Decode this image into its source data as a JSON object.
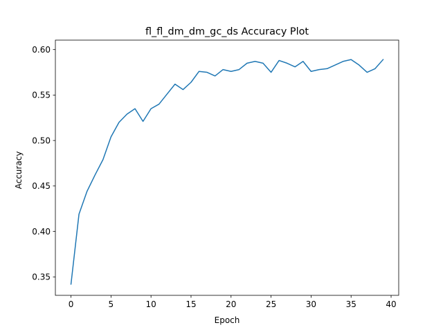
{
  "chart_data": {
    "type": "line",
    "title": "fl_fl_dm_dm_gc_ds Accuracy Plot",
    "xlabel": "Epoch",
    "ylabel": "Accuracy",
    "xlim": [
      -1.95,
      40.95
    ],
    "ylim": [
      0.3297,
      0.6104
    ],
    "xticks": [
      0,
      5,
      10,
      15,
      20,
      25,
      30,
      35,
      40
    ],
    "xtick_labels": [
      "0",
      "5",
      "10",
      "15",
      "20",
      "25",
      "30",
      "35",
      "40"
    ],
    "yticks": [
      0.35,
      0.4,
      0.45,
      0.5,
      0.55,
      0.6
    ],
    "ytick_labels": [
      "0.35",
      "0.40",
      "0.45",
      "0.50",
      "0.55",
      "0.60"
    ],
    "grid": false,
    "line_color": "#1f77b4",
    "series": [
      {
        "x": [
          0,
          1,
          2,
          3,
          4,
          5,
          6,
          7,
          8,
          9,
          10,
          11,
          12,
          13,
          14,
          15,
          16,
          17,
          18,
          19,
          20,
          21,
          22,
          23,
          24,
          25,
          26,
          27,
          28,
          29,
          30,
          31,
          32,
          33,
          34,
          35,
          36,
          37,
          38,
          39
        ],
        "values": [
          0.342,
          0.419,
          0.444,
          0.462,
          0.479,
          0.504,
          0.52,
          0.529,
          0.535,
          0.521,
          0.535,
          0.54,
          0.551,
          0.562,
          0.556,
          0.564,
          0.576,
          0.575,
          0.571,
          0.578,
          0.576,
          0.578,
          0.585,
          0.587,
          0.585,
          0.575,
          0.588,
          0.585,
          0.581,
          0.587,
          0.576,
          0.578,
          0.579,
          0.583,
          0.587,
          0.589,
          0.583,
          0.575,
          0.579,
          0.589
        ]
      }
    ]
  }
}
